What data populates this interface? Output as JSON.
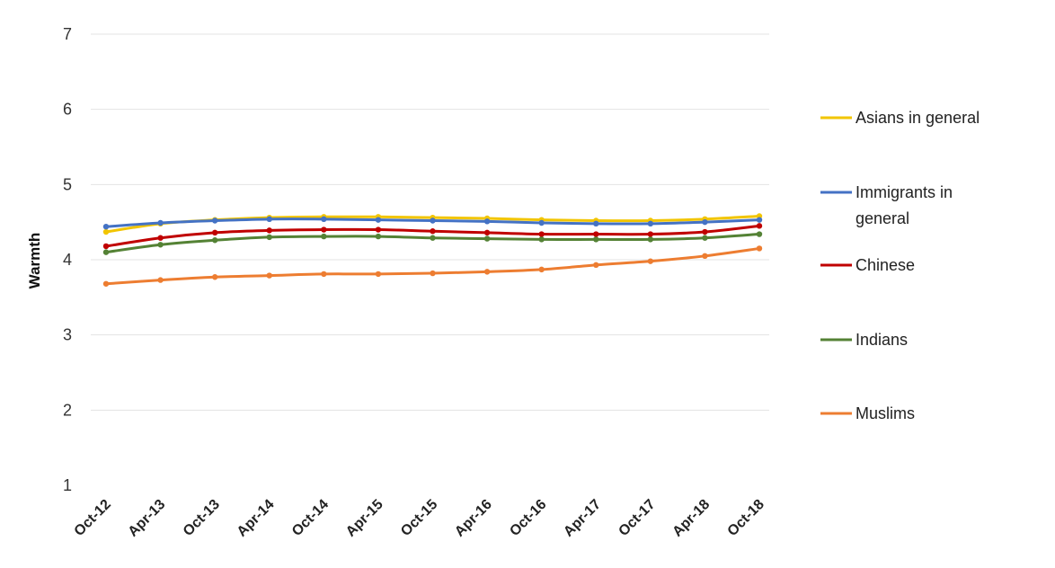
{
  "chart_data": {
    "type": "line",
    "ylabel": "Warmth",
    "xlabel": "",
    "ylim": [
      1,
      7
    ],
    "y_ticks": [
      "1",
      "2",
      "3",
      "4",
      "5",
      "6",
      "7"
    ],
    "grid": true,
    "legend_placement": "right",
    "x_tick_labels": [
      "Oct-12",
      "Apr-13",
      "Oct-13",
      "Apr-14",
      "Oct-14",
      "Apr-15",
      "Oct-15",
      "Apr-16",
      "Oct-16",
      "Apr-17",
      "Oct-17",
      "Apr-18",
      "Oct-18"
    ],
    "series": [
      {
        "name": "Asians in general",
        "color": "#f2c500",
        "values": [
          4.37,
          4.48,
          4.53,
          4.56,
          4.57,
          4.57,
          4.56,
          4.55,
          4.53,
          4.52,
          4.52,
          4.54,
          4.58
        ]
      },
      {
        "name": "Immigrants in general",
        "legend_lines": [
          "Immigrants in",
          "general"
        ],
        "color": "#4472c4",
        "values": [
          4.44,
          4.49,
          4.52,
          4.54,
          4.54,
          4.53,
          4.52,
          4.51,
          4.49,
          4.48,
          4.48,
          4.5,
          4.53
        ]
      },
      {
        "name": "Chinese",
        "color": "#c00000",
        "values": [
          4.18,
          4.29,
          4.36,
          4.39,
          4.4,
          4.4,
          4.38,
          4.36,
          4.34,
          4.34,
          4.34,
          4.37,
          4.45
        ]
      },
      {
        "name": "Indians",
        "color": "#548235",
        "values": [
          4.1,
          4.2,
          4.26,
          4.3,
          4.31,
          4.31,
          4.29,
          4.28,
          4.27,
          4.27,
          4.27,
          4.29,
          4.34
        ]
      },
      {
        "name": "Muslims",
        "color": "#ed7d31",
        "values": [
          3.68,
          3.73,
          3.77,
          3.79,
          3.81,
          3.81,
          3.82,
          3.84,
          3.87,
          3.93,
          3.98,
          4.05,
          4.15
        ]
      }
    ]
  }
}
